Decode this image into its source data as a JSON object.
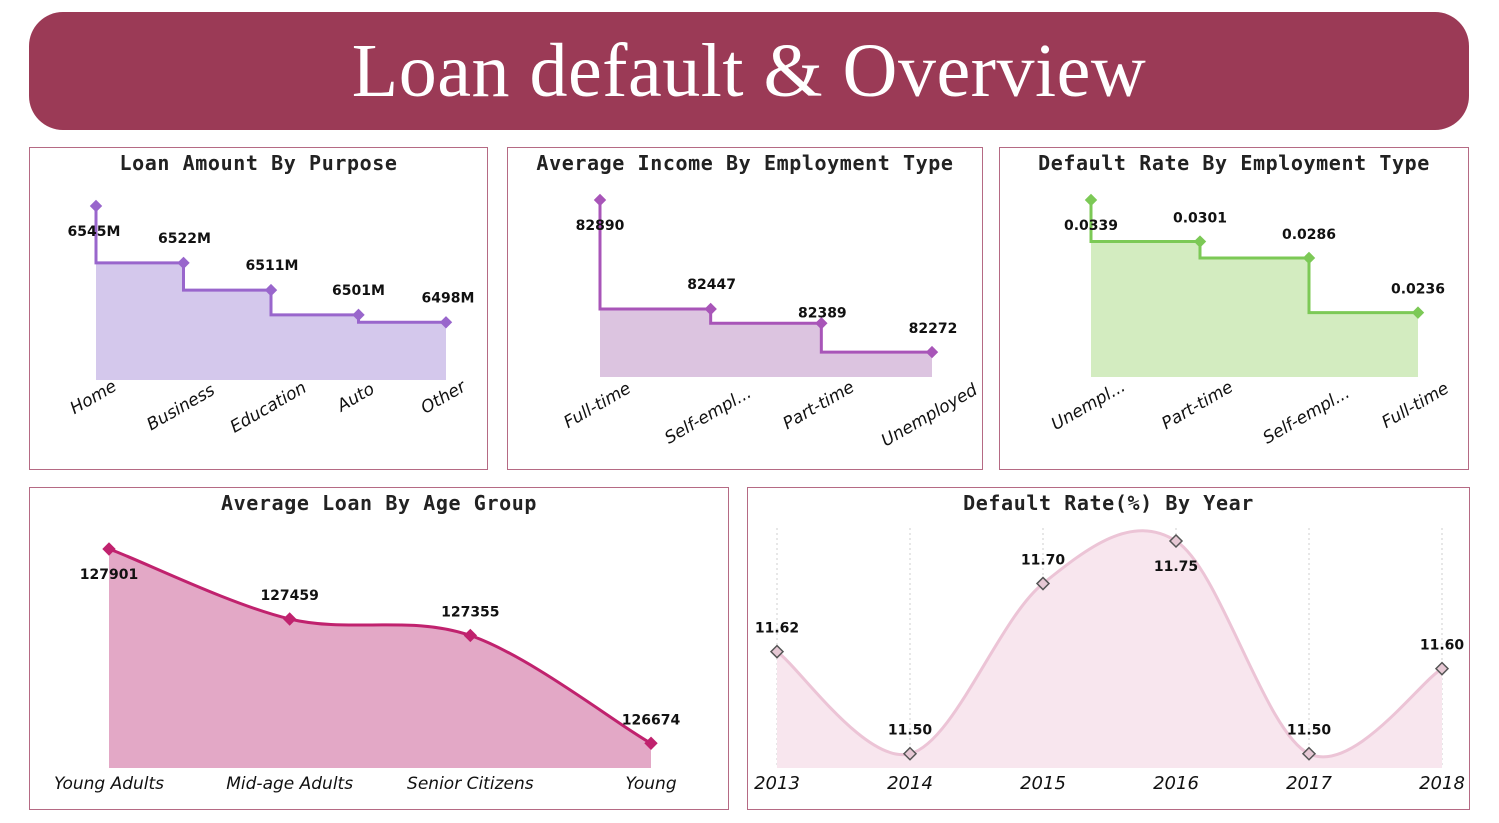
{
  "header": {
    "title": "Loan default & Overview"
  },
  "colors": {
    "banner": "#9b3a56",
    "purpose": "#9966cc",
    "purpose_fill": "#d4c8ec",
    "income": "#a855b8",
    "income_fill": "#dcc4e0",
    "default_emp": "#7cc956",
    "default_emp_fill": "#d3ecc0",
    "age": "#c0226e",
    "age_fill": "#e3a8c6",
    "year": "#ecc4d6",
    "year_fill": "#f8e6ee"
  },
  "chart_data": [
    {
      "id": "purpose",
      "type": "area",
      "title": "Loan Amount By Purpose",
      "categories": [
        "Home",
        "Business",
        "Education",
        "Auto",
        "Other"
      ],
      "values": [
        6545,
        6522,
        6511,
        6501,
        6498
      ],
      "labels": [
        "6545M",
        "6522M",
        "6511M",
        "6501M",
        "6498M"
      ],
      "style": "step"
    },
    {
      "id": "income",
      "type": "area",
      "title": "Average Income By Employment Type",
      "categories": [
        "Full-time",
        "Self-empl...",
        "Part-time",
        "Unemployed"
      ],
      "values": [
        82890,
        82447,
        82389,
        82272
      ],
      "labels": [
        "82890",
        "82447",
        "82389",
        "82272"
      ],
      "style": "step"
    },
    {
      "id": "default_emp",
      "type": "area",
      "title": "Default Rate By Employment Type",
      "categories": [
        "Unempl...",
        "Part-time",
        "Self-empl...",
        "Full-time"
      ],
      "values": [
        0.0339,
        0.0301,
        0.0286,
        0.0236
      ],
      "labels": [
        "0.0339",
        "0.0301",
        "0.0286",
        "0.0236"
      ],
      "style": "step"
    },
    {
      "id": "age",
      "type": "area",
      "title": "Average Loan By Age Group",
      "categories": [
        "Young Adults",
        "Mid-age Adults",
        "Senior Citizens",
        "Young"
      ],
      "values": [
        127901,
        127459,
        127355,
        126674
      ],
      "labels": [
        "127901",
        "127459",
        "127355",
        "126674"
      ],
      "style": "smooth"
    },
    {
      "id": "year",
      "type": "area",
      "title": "Default Rate(%) By Year",
      "categories": [
        "2013",
        "2014",
        "2015",
        "2016",
        "2017",
        "2018"
      ],
      "values": [
        11.62,
        11.5,
        11.7,
        11.75,
        11.5,
        11.6
      ],
      "labels": [
        "11.62",
        "11.50",
        "11.70",
        "11.75",
        "11.50",
        "11.60"
      ],
      "style": "smooth",
      "grid": "vertical"
    }
  ]
}
